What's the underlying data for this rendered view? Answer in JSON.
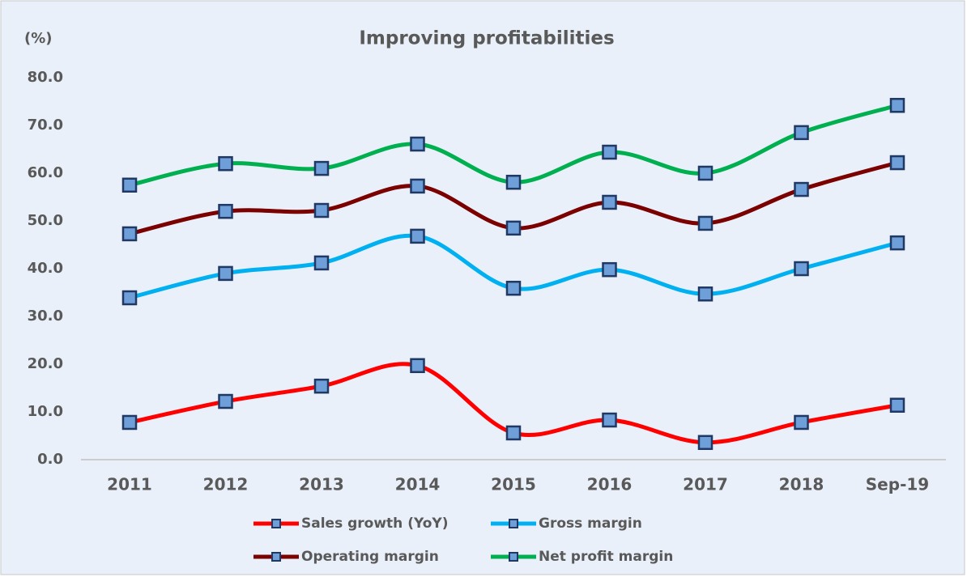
{
  "chart_data": {
    "type": "line",
    "title": "Improving profitabilities",
    "y_axis_label": "(%)",
    "categories": [
      "2011",
      "2012",
      "2013",
      "2014",
      "2015",
      "2016",
      "2017",
      "2018",
      "Sep-19"
    ],
    "series": [
      {
        "name": "Sales growth (YoY)",
        "color": "#ff0000",
        "values": [
          7.8,
          12.2,
          15.4,
          19.7,
          5.6,
          8.3,
          3.6,
          7.8,
          11.4
        ]
      },
      {
        "name": "Gross margin",
        "color": "#00b0f0",
        "values": [
          33.9,
          39.0,
          41.2,
          46.8,
          35.9,
          39.8,
          34.7,
          40.0,
          45.4
        ]
      },
      {
        "name": "Operating margin",
        "color": "#7b0000",
        "values": [
          47.3,
          52.0,
          52.2,
          57.3,
          48.5,
          53.9,
          49.5,
          56.6,
          62.2
        ]
      },
      {
        "name": "Net profit margin",
        "color": "#00b050",
        "values": [
          57.5,
          62.0,
          61.0,
          66.1,
          58.1,
          64.4,
          60.0,
          68.5,
          74.2
        ]
      }
    ],
    "marker_color": "#6f9fd8",
    "ylim": [
      0,
      80
    ],
    "yticks": [
      {
        "value": 0,
        "label": "0.0"
      },
      {
        "value": 10,
        "label": "10.0"
      },
      {
        "value": 20,
        "label": "20.0"
      },
      {
        "value": 30,
        "label": "30.0"
      },
      {
        "value": 40,
        "label": "40.0"
      },
      {
        "value": 50,
        "label": "50.0"
      },
      {
        "value": 60,
        "label": "60.0"
      },
      {
        "value": 70,
        "label": "70.0"
      },
      {
        "value": 80,
        "label": "80.0"
      }
    ],
    "grid": false,
    "smooth": true,
    "legend": "bottom"
  }
}
